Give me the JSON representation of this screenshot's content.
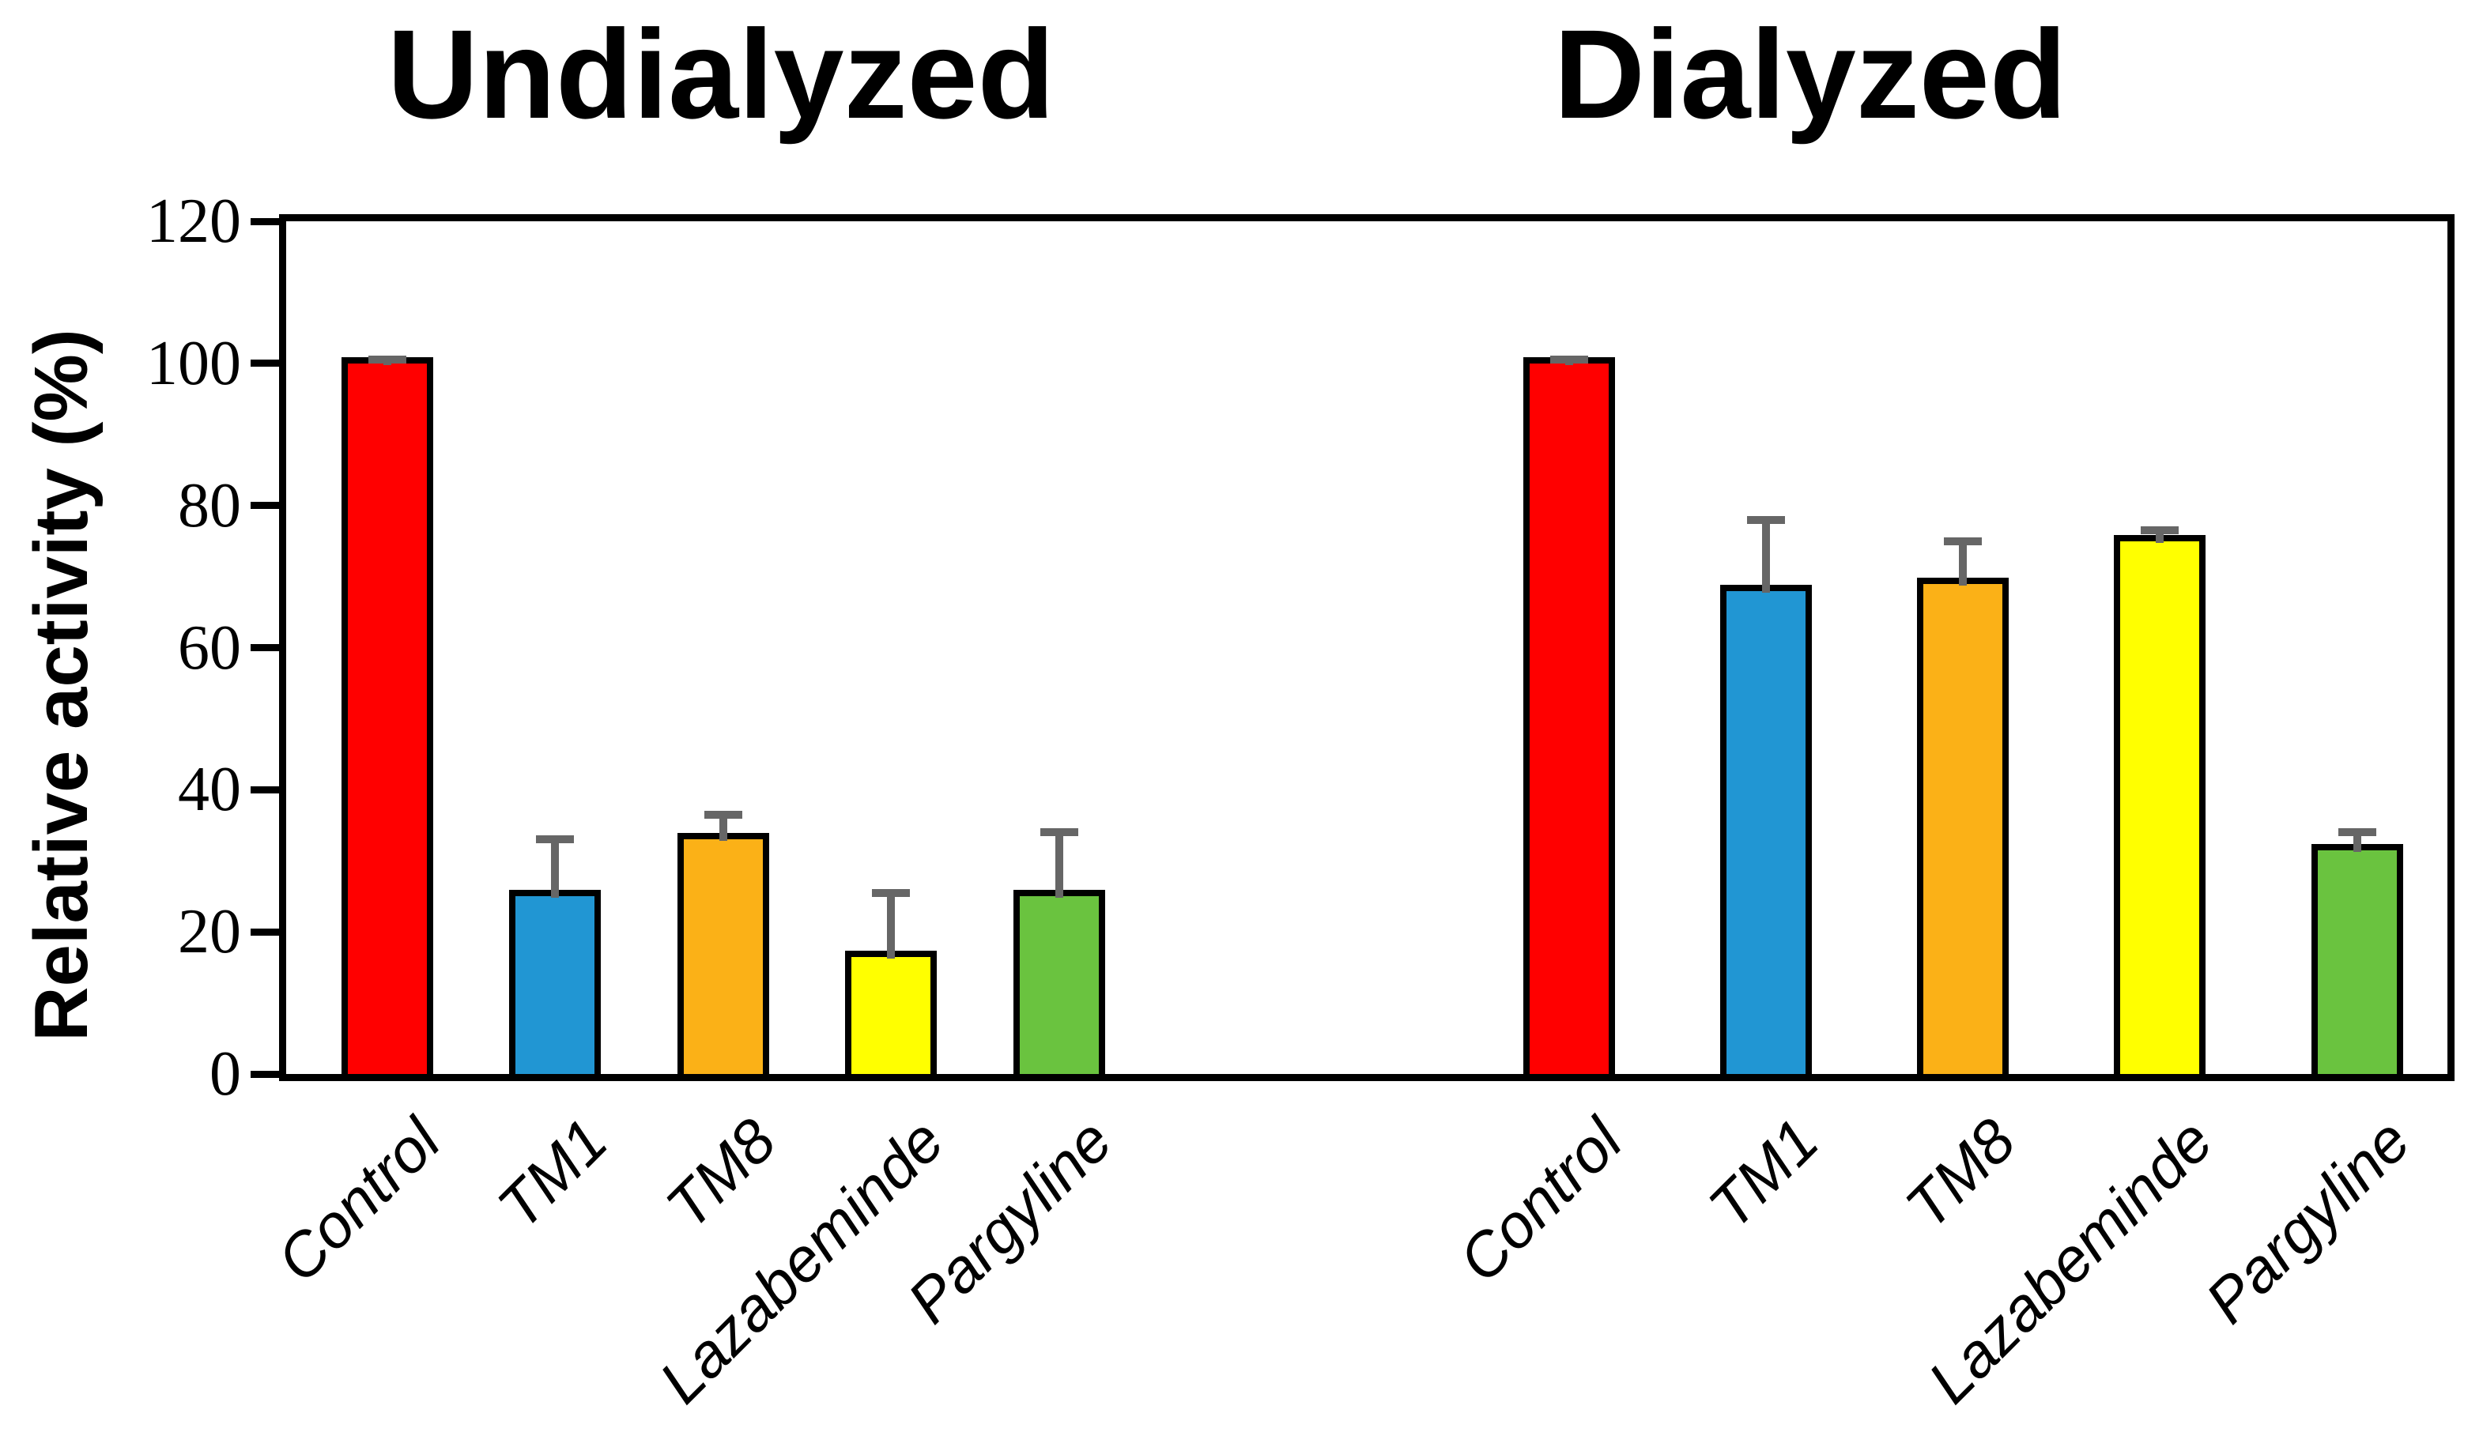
{
  "page": {
    "background": "#FFFFFF"
  },
  "panel_titles": {
    "left": "Undialyzed",
    "right": "Dialyzed"
  },
  "y_axis": {
    "label": "Relative activity (%)",
    "tick_labels": [
      "0",
      "20",
      "40",
      "60",
      "80",
      "100",
      "120"
    ],
    "tick_values": [
      0,
      20,
      40,
      60,
      80,
      100,
      120
    ],
    "min": 0,
    "max": 120
  },
  "colors": {
    "bar_fills": [
      "#FF0000",
      "#2196D3",
      "#FBB117",
      "#FFFF00",
      "#6AC33F"
    ],
    "bar_outline": "#000000",
    "error_bar": "#666666",
    "axis": "#000000",
    "text": "#000000",
    "background": "#FFFFFF"
  },
  "chart_data": [
    {
      "type": "bar",
      "title": "Undialyzed",
      "categories": [
        "Control",
        "TM1",
        "TM8",
        "Lazabeminde",
        "Pargyline"
      ],
      "values": [
        100,
        25,
        33,
        16.5,
        25
      ],
      "errors_plus": [
        0.5,
        8,
        3.5,
        9,
        9
      ],
      "xlabel": "",
      "ylabel": "Relative activity (%)",
      "ylim": [
        0,
        120
      ],
      "grid": false,
      "legend": false
    },
    {
      "type": "bar",
      "title": "Dialyzed",
      "categories": [
        "Control",
        "TM1",
        "TM8",
        "Lazabeminde",
        "Pargyline"
      ],
      "values": [
        100,
        68,
        69,
        75,
        31.5
      ],
      "errors_plus": [
        0.5,
        10,
        6,
        1.5,
        2.5
      ],
      "xlabel": "",
      "ylabel": "Relative activity (%)",
      "ylim": [
        0,
        120
      ],
      "grid": false,
      "legend": false
    }
  ]
}
